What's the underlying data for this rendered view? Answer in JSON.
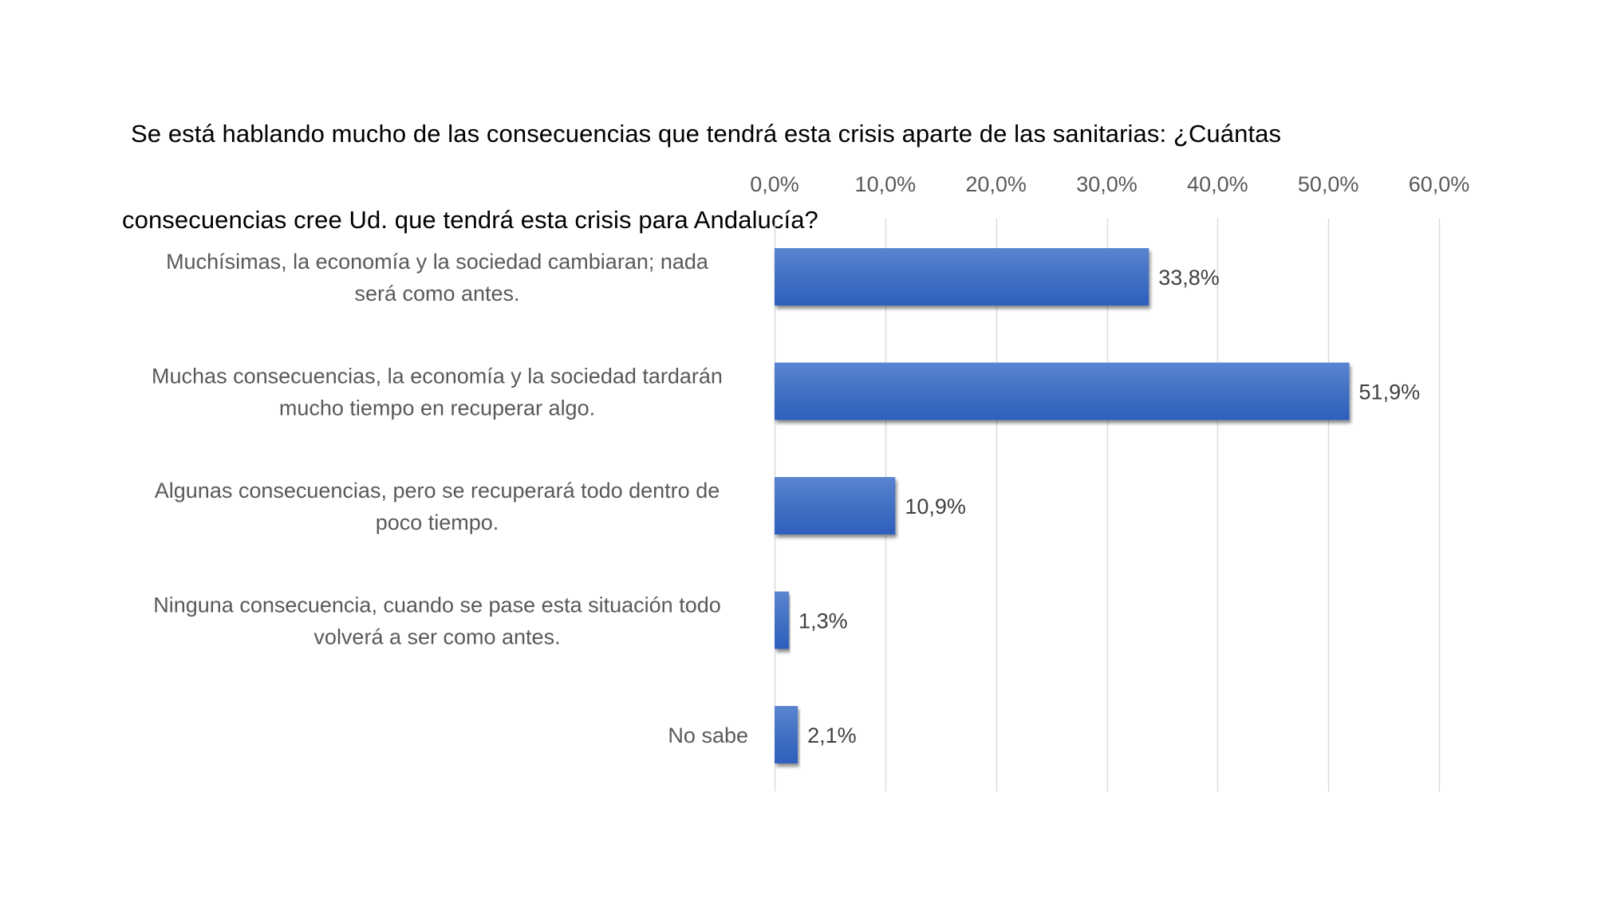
{
  "chart_data": {
    "type": "bar",
    "orientation": "horizontal",
    "title_lines": [
      "Se está hablando mucho de las consecuencias que tendrá esta crisis aparte de las sanitarias: ¿Cuántas",
      "consecuencias cree Ud. que tendrá esta crisis para Andalucía?"
    ],
    "title": "Se está hablando mucho de las consecuencias que tendrá esta crisis aparte de las sanitarias: ¿Cuántas consecuencias cree Ud. que tendrá esta crisis para Andalucía?",
    "categories": [
      [
        "Muchísimas, la economía y la sociedad cambiaran; nada",
        "será como antes."
      ],
      [
        "Muchas consecuencias, la economía y la sociedad tardarán",
        "mucho tiempo en recuperar algo."
      ],
      [
        "Algunas consecuencias, pero se recuperará todo dentro de",
        "poco tiempo."
      ],
      [
        "Ninguna consecuencia, cuando se pase esta situación todo",
        "volverá a ser como antes."
      ],
      [
        "No sabe"
      ]
    ],
    "values": [
      33.8,
      51.9,
      10.9,
      1.3,
      2.1
    ],
    "value_labels": [
      "33,8%",
      "51,9%",
      "10,9%",
      "1,3%",
      "2,1%"
    ],
    "xlim": [
      0,
      60
    ],
    "x_ticks": [
      0,
      10,
      20,
      30,
      40,
      50,
      60
    ],
    "x_tick_labels": [
      "0,0%",
      "10,0%",
      "20,0%",
      "30,0%",
      "40,0%",
      "50,0%",
      "60,0%"
    ],
    "x_axis_position": "top",
    "xlabel": "",
    "ylabel": "",
    "grid": true,
    "legend": "none",
    "colors": {
      "bar_top": "#5b84d0",
      "bar_mid": "#4472c4",
      "bar_bottom": "#2e5fbd",
      "gridline": "#d9d9d9",
      "tick_text": "#595959",
      "data_label_text": "#404040",
      "title_text": "#000000"
    }
  }
}
